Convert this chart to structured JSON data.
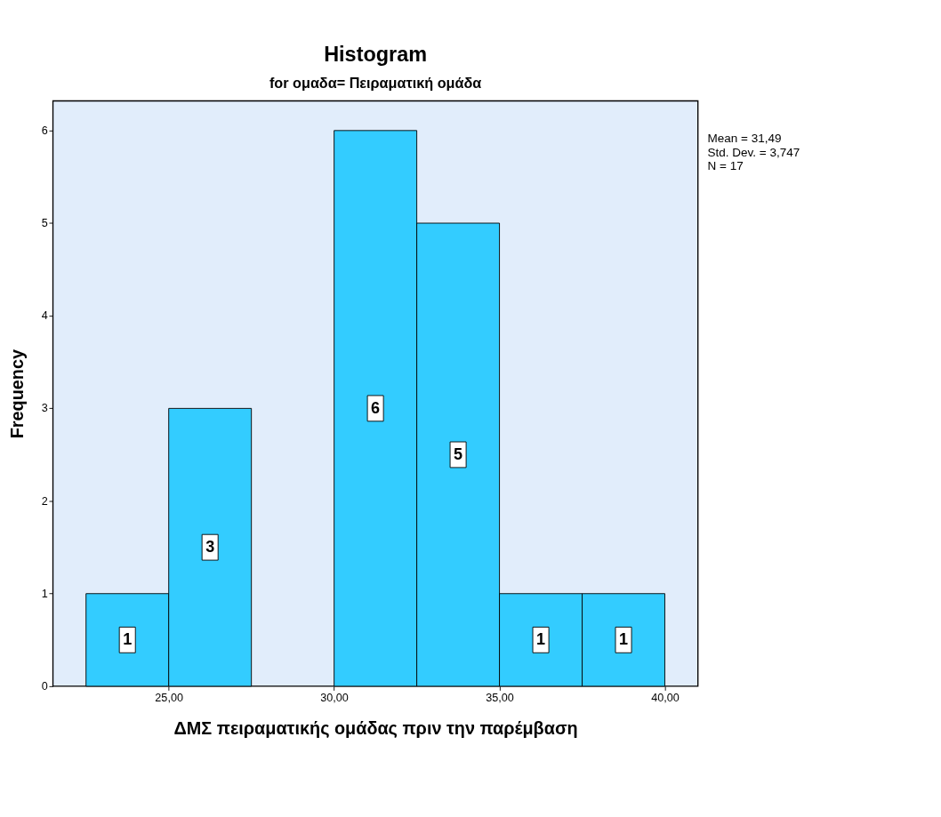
{
  "chart_data": {
    "type": "histogram",
    "title": "Histogram",
    "subtitle": "for ομαδα= Πειραματική ομάδα",
    "xlabel": "ΔΜΣ πειραματικής ομάδας πριν την παρέμβαση",
    "ylabel": "Frequency",
    "bins": [
      22.5,
      25,
      27.5,
      30,
      32.5,
      35,
      37.5,
      40
    ],
    "values": [
      1,
      3,
      0,
      6,
      5,
      1,
      1
    ],
    "value_labels": [
      "1",
      "3",
      null,
      "6",
      "5",
      "1",
      "1"
    ],
    "color": "#33ccff",
    "xlim": [
      21.5,
      41
    ],
    "xticks": [
      {
        "value": 25,
        "label": "25,00"
      },
      {
        "value": 30,
        "label": "30,00"
      },
      {
        "value": 35,
        "label": "35,00"
      },
      {
        "value": 40,
        "label": "40,00"
      }
    ],
    "ylim": [
      0,
      6.32
    ],
    "yticks": [
      0,
      1,
      2,
      3,
      4,
      5,
      6
    ],
    "grid": false,
    "annotations": [
      "Mean = 31,49",
      "Std. Dev. = 3,747",
      "N = 17"
    ]
  }
}
